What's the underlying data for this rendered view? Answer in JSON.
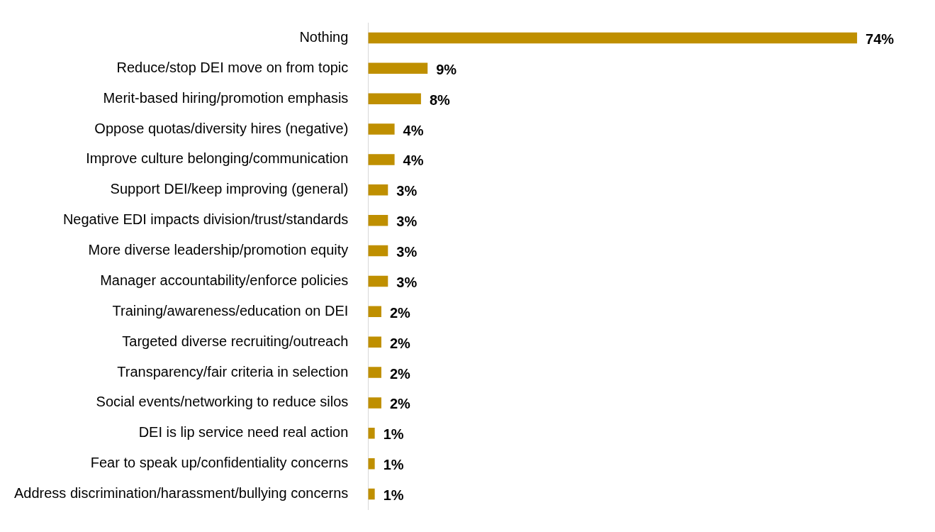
{
  "chart_data": {
    "type": "bar",
    "orientation": "horizontal",
    "categories": [
      "Nothing",
      "Reduce/stop DEI move on from topic",
      "Merit-based hiring/promotion emphasis",
      "Oppose quotas/diversity hires (negative)",
      "Improve culture belonging/communication",
      "Support DEI/keep improving (general)",
      "Negative EDI impacts division/trust/standards",
      "More diverse leadership/promotion equity",
      "Manager accountability/enforce policies",
      "Training/awareness/education on DEI",
      "Targeted diverse recruiting/outreach",
      "Transparency/fair criteria in selection",
      "Social events/networking to reduce silos",
      "DEI is lip service need real action",
      "Fear to speak up/confidentiality concerns",
      "Address discrimination/harassment/bullying concerns"
    ],
    "values": [
      74,
      9,
      8,
      4,
      4,
      3,
      3,
      3,
      3,
      2,
      2,
      2,
      2,
      1,
      1,
      1
    ],
    "value_labels": [
      "74%",
      "9%",
      "8%",
      "4%",
      "4%",
      "3%",
      "3%",
      "3%",
      "3%",
      "2%",
      "2%",
      "2%",
      "2%",
      "1%",
      "1%",
      "1%"
    ],
    "color": "#bf8f00",
    "legend": false
  }
}
